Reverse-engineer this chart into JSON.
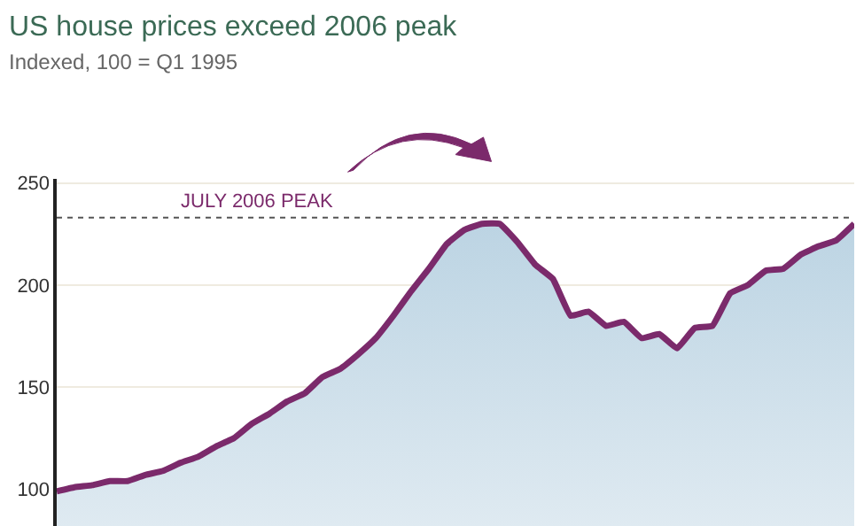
{
  "chart_data": {
    "type": "area",
    "title": "US house prices exceed 2006 peak",
    "subtitle": "Indexed, 100 = Q1 1995",
    "categories": [
      null,
      null,
      null,
      null,
      null,
      null,
      null,
      null,
      null,
      null,
      null,
      null,
      null,
      null,
      null,
      null,
      null,
      null,
      null,
      null,
      null,
      null,
      null,
      null,
      null,
      null,
      null,
      null,
      null,
      null,
      null,
      null,
      null,
      null,
      null,
      null,
      null,
      null,
      null,
      null,
      null,
      null,
      null,
      null,
      null,
      null
    ],
    "series": [
      {
        "color": "#7b2a6b",
        "values": [
          99,
          101,
          102,
          104,
          104,
          107,
          109,
          113,
          116,
          121,
          125,
          132,
          137,
          143,
          147,
          155,
          159,
          166,
          174,
          185,
          197,
          208,
          220,
          227,
          230,
          230,
          221,
          210,
          203,
          185,
          187,
          180,
          182,
          174,
          176,
          169,
          179,
          180,
          196,
          200,
          207,
          208,
          215,
          219,
          222,
          230
        ]
      }
    ],
    "ylim": [
      82,
      252
    ],
    "yticks": [
      100,
      150,
      200,
      250
    ],
    "grid": "y",
    "tick_labels": "y",
    "ref_lines": [
      {
        "axis": "y",
        "value": 233,
        "label": "JULY 2006 PEAK",
        "color": "#555555",
        "line_style": "dotted"
      }
    ]
  }
}
